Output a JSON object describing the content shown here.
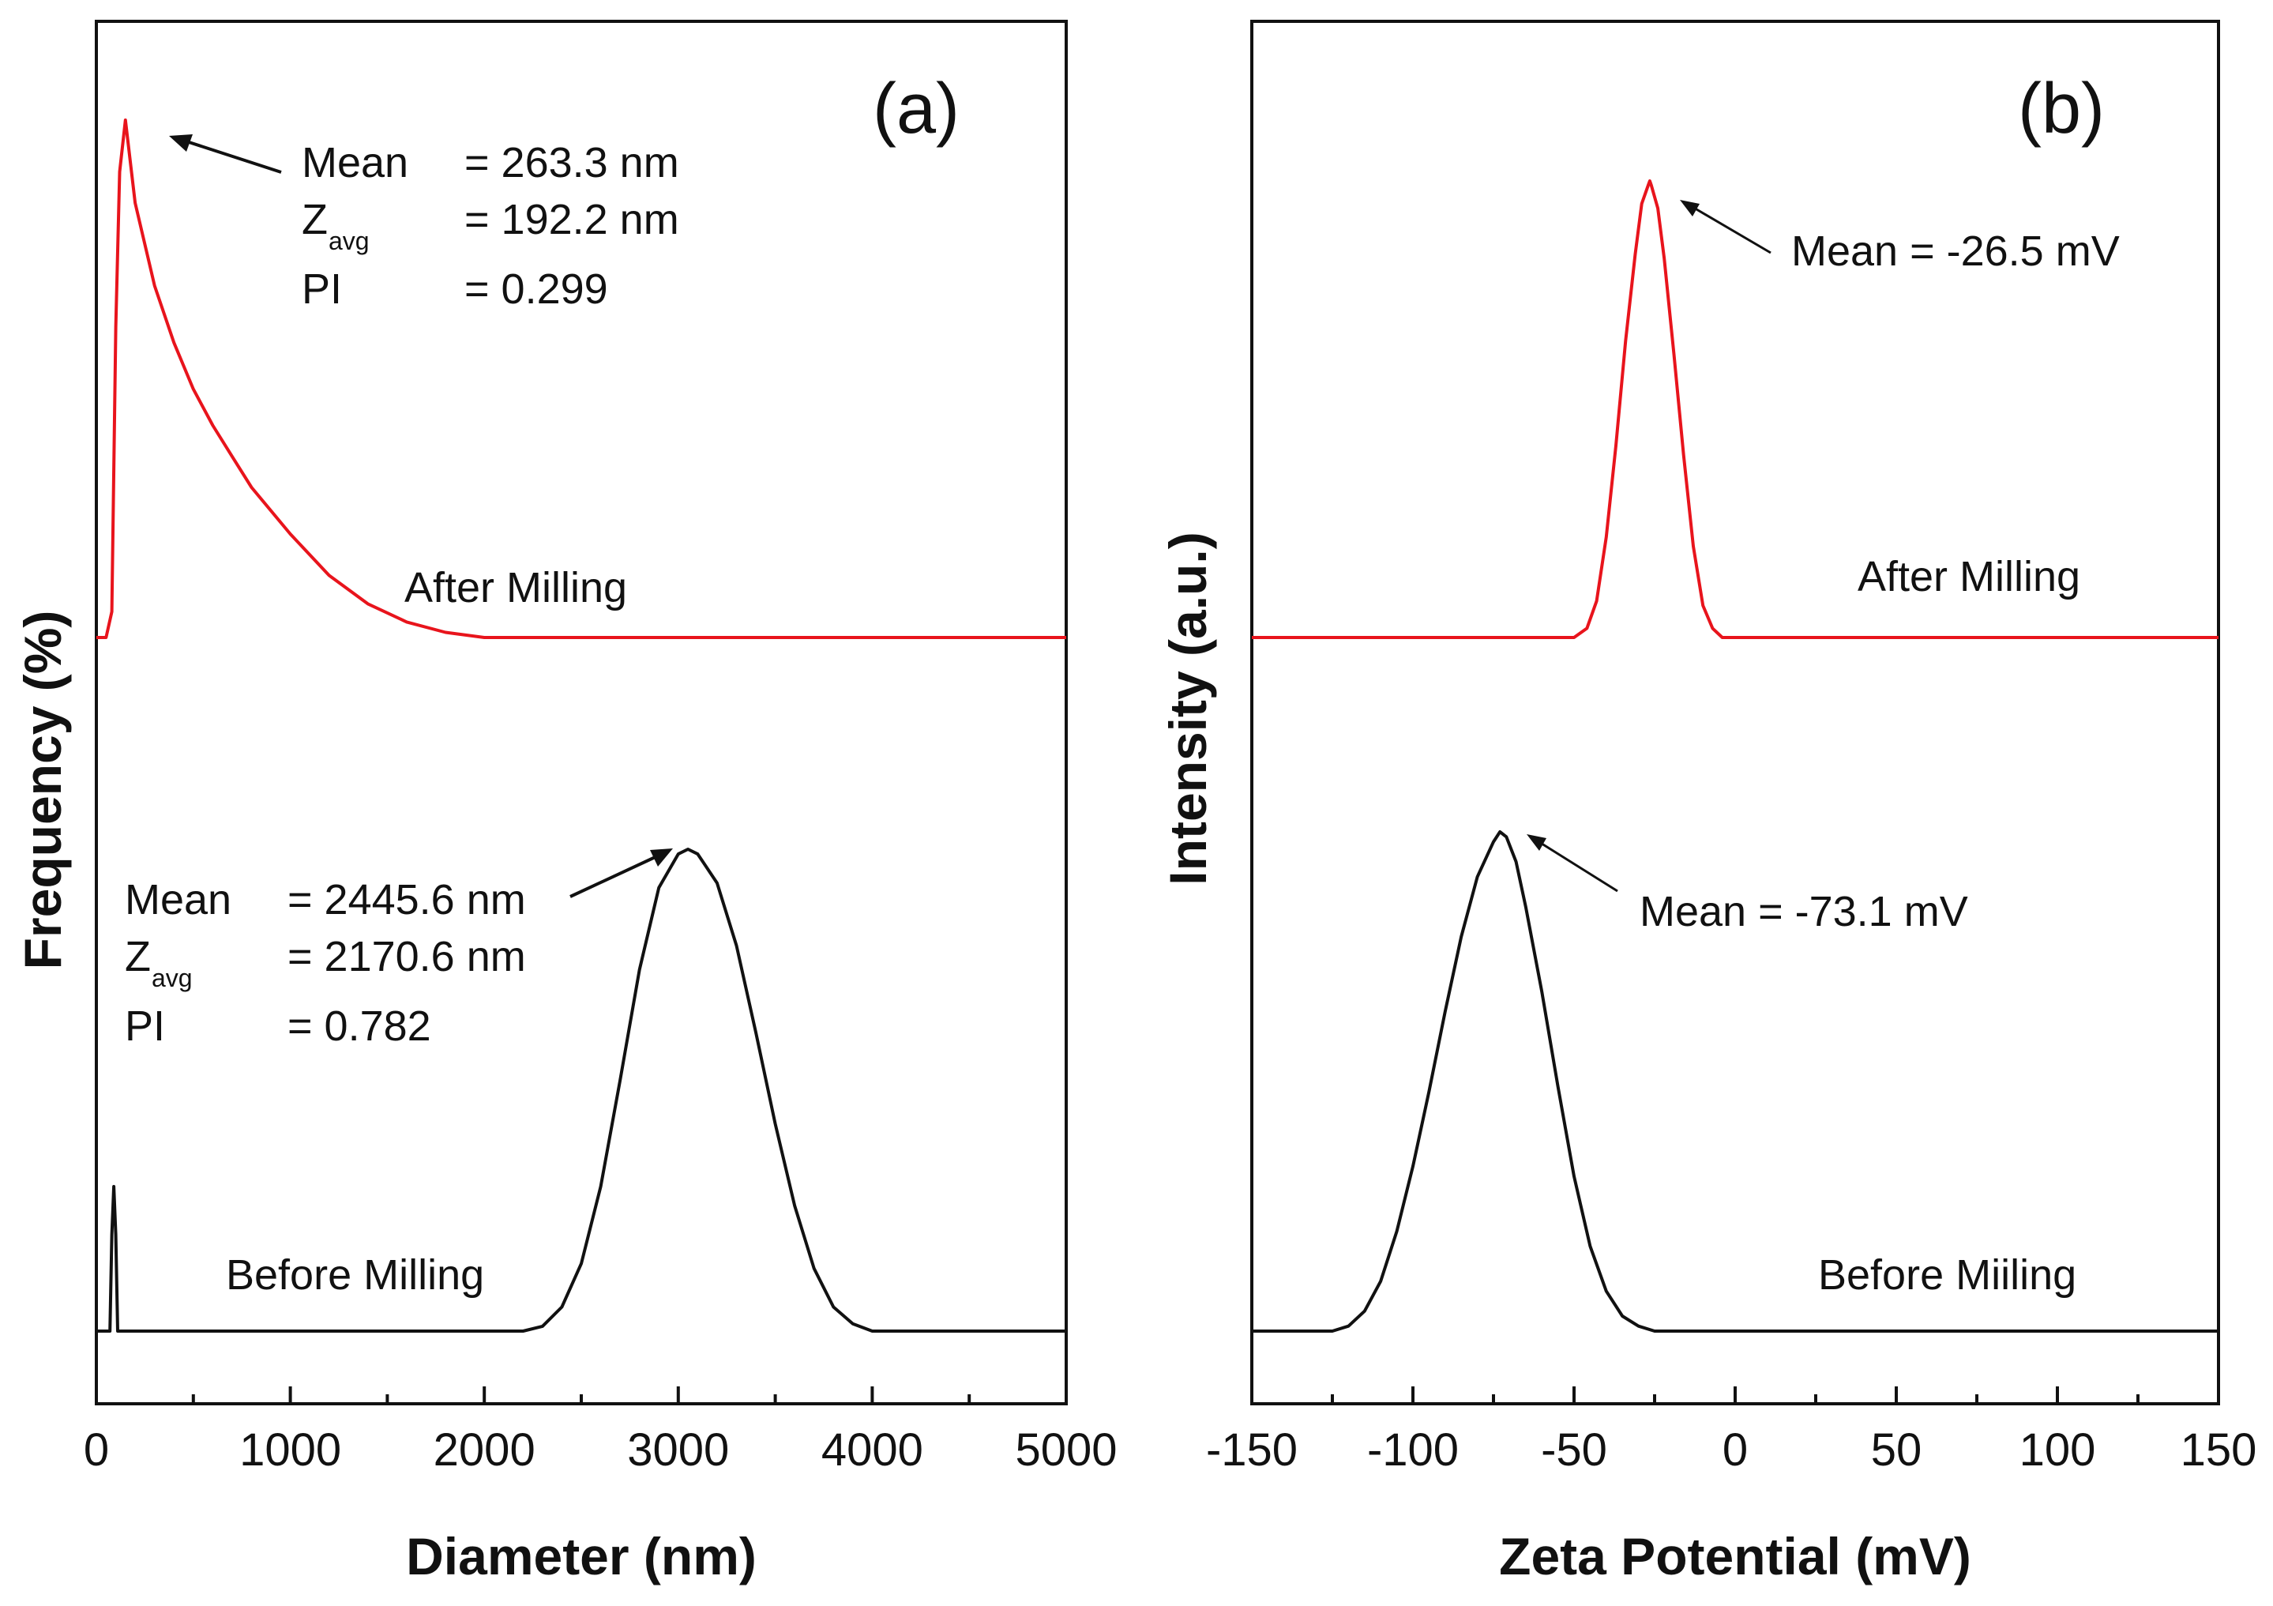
{
  "colors": {
    "after": "#e8141c",
    "before": "#111111",
    "axis": "#111111"
  },
  "chart_data": [
    {
      "type": "line",
      "panel_label": "(a)",
      "xlabel": "Diameter (nm)",
      "ylabel": "Frequency (%)",
      "xlim": [
        0,
        5000
      ],
      "xticks": [
        0,
        1000,
        2000,
        3000,
        4000,
        5000
      ],
      "xtick_labels": [
        "0",
        "1000",
        "2000",
        "3000",
        "4000",
        "5000"
      ],
      "y_ticks_shown": false,
      "series": [
        {
          "name": "After Milling",
          "color": "#e8141c",
          "x": [
            0,
            50,
            80,
            100,
            120,
            150,
            200,
            300,
            400,
            500,
            600,
            700,
            800,
            1000,
            1200,
            1400,
            1600,
            1800,
            2000,
            5000
          ],
          "y": [
            0,
            0,
            0.05,
            0.6,
            0.9,
            1.0,
            0.84,
            0.68,
            0.57,
            0.48,
            0.41,
            0.35,
            0.29,
            0.2,
            0.12,
            0.065,
            0.03,
            0.01,
            0,
            0
          ]
        },
        {
          "name": "Before Milling",
          "color": "#111111",
          "x": [
            0,
            70,
            80,
            90,
            100,
            110,
            2200,
            2300,
            2400,
            2500,
            2600,
            2700,
            2800,
            2900,
            3000,
            3050,
            3100,
            3200,
            3300,
            3400,
            3500,
            3600,
            3700,
            3800,
            3900,
            4000,
            4100,
            5000
          ],
          "y": [
            0,
            0,
            0.2,
            0.3,
            0.2,
            0,
            0,
            0.01,
            0.05,
            0.14,
            0.3,
            0.52,
            0.75,
            0.92,
            0.99,
            1.0,
            0.99,
            0.93,
            0.8,
            0.62,
            0.43,
            0.26,
            0.13,
            0.05,
            0.015,
            0,
            0,
            0
          ]
        }
      ],
      "annotations": [
        {
          "series": "After Milling",
          "rows": [
            {
              "key": "Mean",
              "sub": "",
              "value": "= 263.3 nm"
            },
            {
              "key": "Z",
              "sub": "avg",
              "value": "= 192.2 nm"
            },
            {
              "key": "PI",
              "sub": "",
              "value": "= 0.299"
            }
          ]
        },
        {
          "series": "Before Milling",
          "rows": [
            {
              "key": "Mean",
              "sub": "",
              "value": "= 2445.6 nm"
            },
            {
              "key": "Z",
              "sub": "avg",
              "value": "= 2170.6 nm"
            },
            {
              "key": "PI",
              "sub": "",
              "value": "= 0.782"
            }
          ]
        }
      ]
    },
    {
      "type": "line",
      "panel_label": "(b)",
      "xlabel": "Zeta Potential (mV)",
      "ylabel": "Intensity (a.u.)",
      "xlim": [
        -150,
        150
      ],
      "xticks": [
        -150,
        -100,
        -50,
        0,
        50,
        100,
        150
      ],
      "xtick_labels": [
        "-150",
        "-100",
        "-50",
        "0",
        "50",
        "100",
        "150"
      ],
      "y_ticks_shown": false,
      "series": [
        {
          "name": "After Milling",
          "color": "#e8141c",
          "x": [
            -150,
            -50,
            -46,
            -43,
            -40,
            -37,
            -34,
            -31,
            -29,
            -27,
            -26.5,
            -26,
            -24,
            -22,
            -19,
            -16,
            -13,
            -10,
            -7,
            -4,
            150
          ],
          "y": [
            0,
            0,
            0.02,
            0.08,
            0.22,
            0.42,
            0.65,
            0.84,
            0.95,
            0.99,
            1.0,
            0.99,
            0.94,
            0.83,
            0.62,
            0.4,
            0.2,
            0.07,
            0.02,
            0,
            0
          ]
        },
        {
          "name": "Before Miiling",
          "color": "#111111",
          "x": [
            -150,
            -125,
            -120,
            -115,
            -110,
            -105,
            -100,
            -95,
            -90,
            -85,
            -80,
            -75,
            -73,
            -71,
            -68,
            -65,
            -60,
            -55,
            -50,
            -45,
            -40,
            -35,
            -30,
            -25,
            -20,
            150
          ],
          "y": [
            0,
            0,
            0.01,
            0.04,
            0.1,
            0.2,
            0.33,
            0.48,
            0.64,
            0.79,
            0.91,
            0.98,
            1.0,
            0.99,
            0.94,
            0.85,
            0.68,
            0.49,
            0.31,
            0.17,
            0.08,
            0.03,
            0.01,
            0,
            0,
            0
          ]
        }
      ],
      "annotations": [
        {
          "series": "After Milling",
          "text": "Mean = -26.5 mV"
        },
        {
          "series": "Before Miiling",
          "text": "Mean = -73.1 mV"
        }
      ]
    }
  ]
}
